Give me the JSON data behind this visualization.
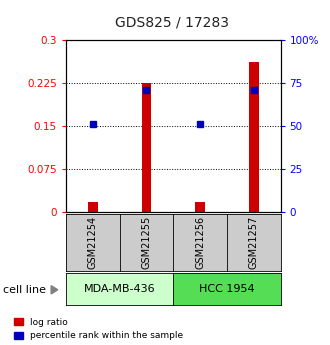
{
  "title": "GDS825 / 17283",
  "samples": [
    "GSM21254",
    "GSM21255",
    "GSM21256",
    "GSM21257"
  ],
  "log_ratio": [
    0.018,
    0.225,
    0.018,
    0.262
  ],
  "percentile_rank_pct": [
    51,
    71,
    51,
    71
  ],
  "ylim_left": [
    0,
    0.3
  ],
  "ylim_right": [
    0,
    100
  ],
  "yticks_left": [
    0,
    0.075,
    0.15,
    0.225,
    0.3
  ],
  "yticks_right": [
    0,
    25,
    50,
    75,
    100
  ],
  "ytick_labels_left": [
    "0",
    "0.075",
    "0.15",
    "0.225",
    "0.3"
  ],
  "ytick_labels_right": [
    "0",
    "25",
    "50",
    "75",
    "100%"
  ],
  "cell_lines": [
    {
      "label": "MDA-MB-436",
      "samples": [
        0,
        1
      ],
      "color": "#ccffcc"
    },
    {
      "label": "HCC 1954",
      "samples": [
        2,
        3
      ],
      "color": "#55dd55"
    }
  ],
  "bar_color": "#cc0000",
  "dot_color": "#0000bb",
  "sample_box_color": "#cccccc",
  "title_color": "#222222",
  "bar_width": 0.18
}
